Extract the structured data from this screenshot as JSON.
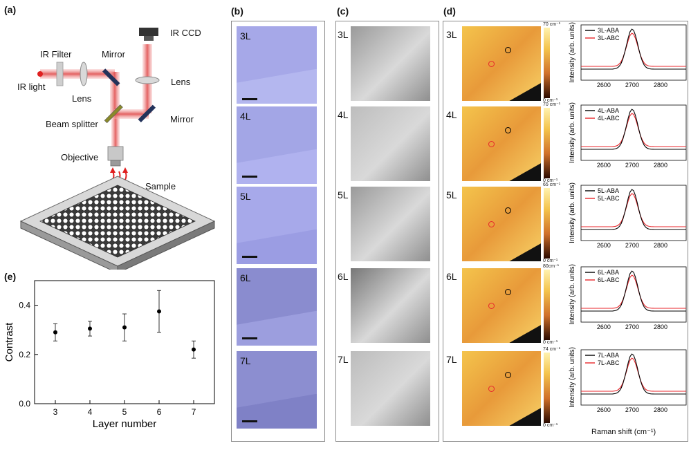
{
  "panels": {
    "a": "(a)",
    "b": "(b)",
    "c": "(c)",
    "d": "(d)",
    "e": "(e)"
  },
  "setup": {
    "ir_light": "IR light",
    "ir_filter": "IR Filter",
    "lens1": "Lens",
    "mirror1": "Mirror",
    "ir_ccd": "IR CCD",
    "lens2": "Lens",
    "beam_splitter": "Beam splitter",
    "mirror2": "Mirror",
    "objective": "Objective",
    "sample": "Sample"
  },
  "layers": [
    "3L",
    "4L",
    "5L",
    "6L",
    "7L"
  ],
  "colorbars": [
    {
      "max": "70 cm⁻¹",
      "min": "0 cm⁻¹"
    },
    {
      "max": "70 cm⁻¹",
      "min": "0 cm⁻¹"
    },
    {
      "max": "65 cm⁻¹",
      "min": "0 cm⁻¹"
    },
    {
      "max": "80cm⁻¹",
      "min": "0 cm⁻¹"
    },
    {
      "max": "74 cm⁻¹",
      "min": "0 cm⁻¹"
    }
  ],
  "spectra": {
    "ylabel": "Intensity (arb. units)",
    "xlabel": "Raman shift (cm⁻¹)",
    "xticks": [
      "2600",
      "2700",
      "2800"
    ],
    "legends": [
      [
        "3L-ABA",
        "3L-ABC"
      ],
      [
        "4L-ABA",
        "4L-ABC"
      ],
      [
        "5L-ABA",
        "5L-ABC"
      ],
      [
        "6L-ABA",
        "6L-ABC"
      ],
      [
        "7L-ABA",
        "7L-ABC"
      ]
    ],
    "colors": {
      "aba": "#000000",
      "abc": "#e8262b"
    }
  },
  "chart_data": {
    "type": "scatter",
    "title": "",
    "xlabel": "Layer number",
    "ylabel": "Contrast",
    "x": [
      3,
      4,
      5,
      6,
      7
    ],
    "y": [
      0.29,
      0.305,
      0.31,
      0.375,
      0.22
    ],
    "yerr": [
      0.035,
      0.03,
      0.055,
      0.085,
      0.035
    ],
    "xlim": [
      2.4,
      7.6
    ],
    "ylim": [
      0.0,
      0.5
    ],
    "xticks": [
      "3",
      "4",
      "5",
      "6",
      "7"
    ],
    "yticks": [
      "0.0",
      "0.2",
      "0.4"
    ],
    "grid": false,
    "legend": "none"
  }
}
